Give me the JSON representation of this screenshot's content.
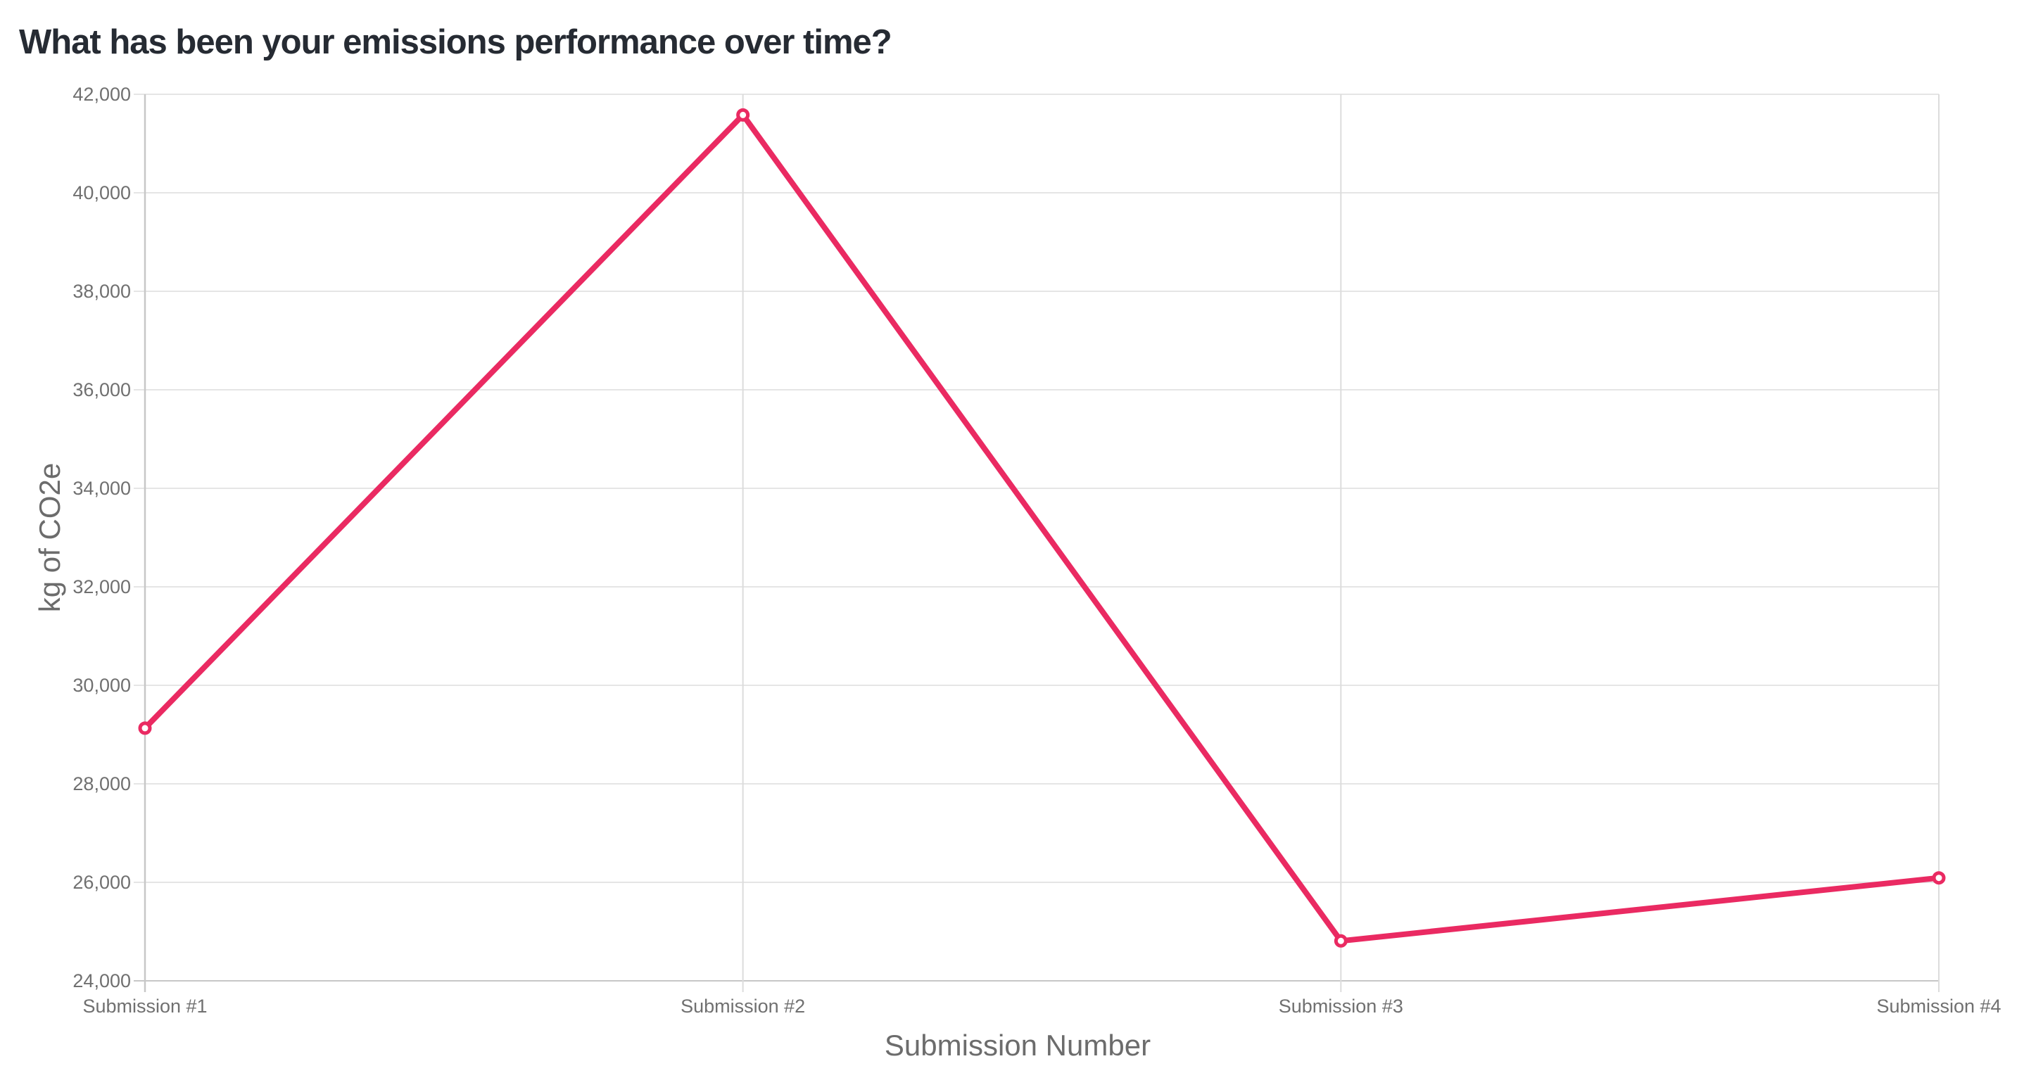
{
  "page": {
    "title": "What has been your emissions performance over time?"
  },
  "chart_data": {
    "type": "line",
    "title": "What has been your emissions performance over time?",
    "xlabel": "Submission Number",
    "ylabel": "kg of CO2e",
    "categories": [
      "Submission #1",
      "Submission #2",
      "Submission #3",
      "Submission #4"
    ],
    "series": [
      {
        "name": "kg of CO2e",
        "values": [
          29130,
          41580,
          24810,
          26090
        ]
      }
    ],
    "ylim": [
      24000,
      42000
    ],
    "y_tick_step": 2000,
    "y_ticks": [
      {
        "value": 24000,
        "label": "24,000"
      },
      {
        "value": 26000,
        "label": "26,000"
      },
      {
        "value": 28000,
        "label": "28,000"
      },
      {
        "value": 30000,
        "label": "30,000"
      },
      {
        "value": 32000,
        "label": "32,000"
      },
      {
        "value": 34000,
        "label": "34,000"
      },
      {
        "value": 36000,
        "label": "36,000"
      },
      {
        "value": 38000,
        "label": "38,000"
      },
      {
        "value": 40000,
        "label": "40,000"
      },
      {
        "value": 42000,
        "label": "42,000"
      }
    ],
    "grid": true,
    "legend": "none",
    "marker_style": "open-circle"
  },
  "colors": {
    "accent": "#ea2a62",
    "marker_fill": "#ffffff",
    "title_text": "#262b33",
    "axis_title_text": "#6c6c6c",
    "tick_text": "#707070",
    "h_gridline": "#e5e5e5",
    "v_gridline": "#dcdcdc",
    "axis_line": "#c7c7c7",
    "background": "#ffffff"
  }
}
